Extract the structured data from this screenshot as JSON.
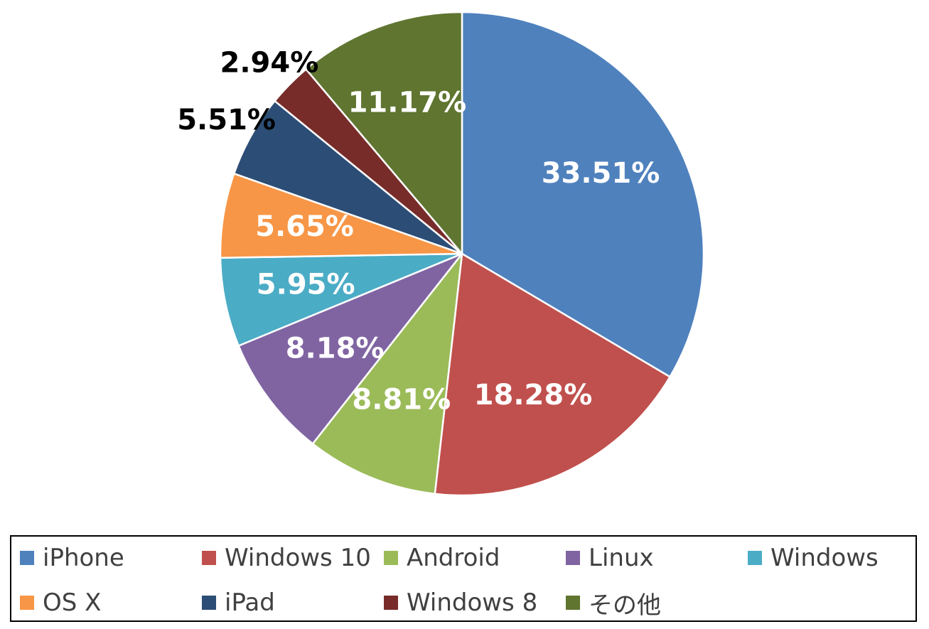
{
  "chart_data": {
    "type": "pie",
    "title": "",
    "start_angle": 0,
    "direction": "clockwise",
    "legend_placement": "bottom",
    "slices": [
      {
        "name": "iPhone",
        "value": 33.51,
        "label": "33.51%",
        "color": "#4f81bd",
        "label_color": "#ffffff",
        "label_position": "inside"
      },
      {
        "name": "Windows 10",
        "value": 18.28,
        "label": "18.28%",
        "color": "#c0504d",
        "label_color": "#ffffff",
        "label_position": "inside"
      },
      {
        "name": "Android",
        "value": 8.81,
        "label": "8.81%",
        "color": "#9bbb59",
        "label_color": "#ffffff",
        "label_position": "inside"
      },
      {
        "name": "Linux",
        "value": 8.18,
        "label": "8.18%",
        "color": "#8064a2",
        "label_color": "#ffffff",
        "label_position": "inside"
      },
      {
        "name": "Windows",
        "value": 5.95,
        "label": "5.95%",
        "color": "#4bacc6",
        "label_color": "#ffffff",
        "label_position": "inside"
      },
      {
        "name": "OS X",
        "value": 5.65,
        "label": "5.65%",
        "color": "#f79646",
        "label_color": "#ffffff",
        "label_position": "inside"
      },
      {
        "name": "iPad",
        "value": 5.51,
        "label": "5.51%",
        "color": "#2c4d75",
        "label_color": "#000000",
        "label_position": "outside"
      },
      {
        "name": "Windows 8",
        "value": 2.94,
        "label": "2.94%",
        "color": "#772c2a",
        "label_color": "#000000",
        "label_position": "outside"
      },
      {
        "name": "その他",
        "value": 11.17,
        "label": "11.17%",
        "color": "#5f7530",
        "label_color": "#ffffff",
        "label_position": "inside"
      }
    ]
  }
}
